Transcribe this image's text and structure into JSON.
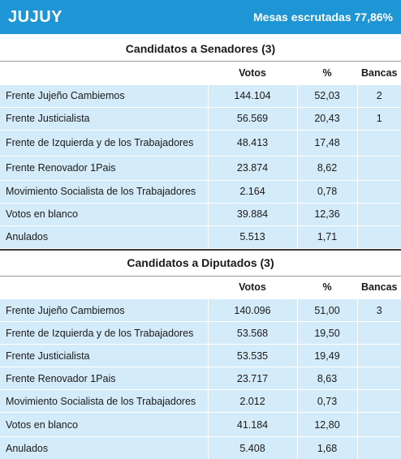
{
  "header": {
    "province": "JUJUY",
    "mesas": "Mesas escrutadas 77,86%",
    "color": "#1e96d6"
  },
  "senadores": {
    "title": "Candidatos a Senadores (3)",
    "columns": {
      "votos": "Votos",
      "pct": "%",
      "bancas": "Bancas"
    },
    "rows": [
      {
        "name": "Frente Jujeño Cambiemos",
        "votos": "144.104",
        "pct": "52,03",
        "bancas": "2"
      },
      {
        "name": "Frente Justicialista",
        "votos": "56.569",
        "pct": "20,43",
        "bancas": "1"
      },
      {
        "name": "Frente de Izquierda y de los Trabajadores",
        "votos": "48.413",
        "pct": "17,48",
        "bancas": ""
      },
      {
        "name": "Frente Renovador 1Pais",
        "votos": "23.874",
        "pct": "8,62",
        "bancas": ""
      },
      {
        "name": "Movimiento Socialista de los Trabajadores",
        "votos": "2.164",
        "pct": "0,78",
        "bancas": ""
      },
      {
        "name": "Votos en blanco",
        "votos": "39.884",
        "pct": "12,36",
        "bancas": ""
      },
      {
        "name": "Anulados",
        "votos": "5.513",
        "pct": "1,71",
        "bancas": ""
      }
    ]
  },
  "diputados": {
    "title": "Candidatos a Diputados (3)",
    "columns": {
      "votos": "Votos",
      "pct": "%",
      "bancas": "Bancas"
    },
    "rows": [
      {
        "name": "Frente Jujeño Cambiemos",
        "votos": "140.096",
        "pct": "51,00",
        "bancas": "3"
      },
      {
        "name": "Frente de Izquierda y de los Trabajadores",
        "votos": "53.568",
        "pct": "19,50",
        "bancas": ""
      },
      {
        "name": "Frente Justicialista",
        "votos": "53.535",
        "pct": "19,49",
        "bancas": ""
      },
      {
        "name": "Frente Renovador 1Pais",
        "votos": "23.717",
        "pct": "8,63",
        "bancas": ""
      },
      {
        "name": "Movimiento Socialista de los Trabajadores",
        "votos": "2.012",
        "pct": "0,73",
        "bancas": ""
      },
      {
        "name": "Votos en blanco",
        "votos": "41.184",
        "pct": "12,80",
        "bancas": ""
      },
      {
        "name": "Anulados",
        "votos": "5.408",
        "pct": "1,68",
        "bancas": ""
      }
    ]
  }
}
